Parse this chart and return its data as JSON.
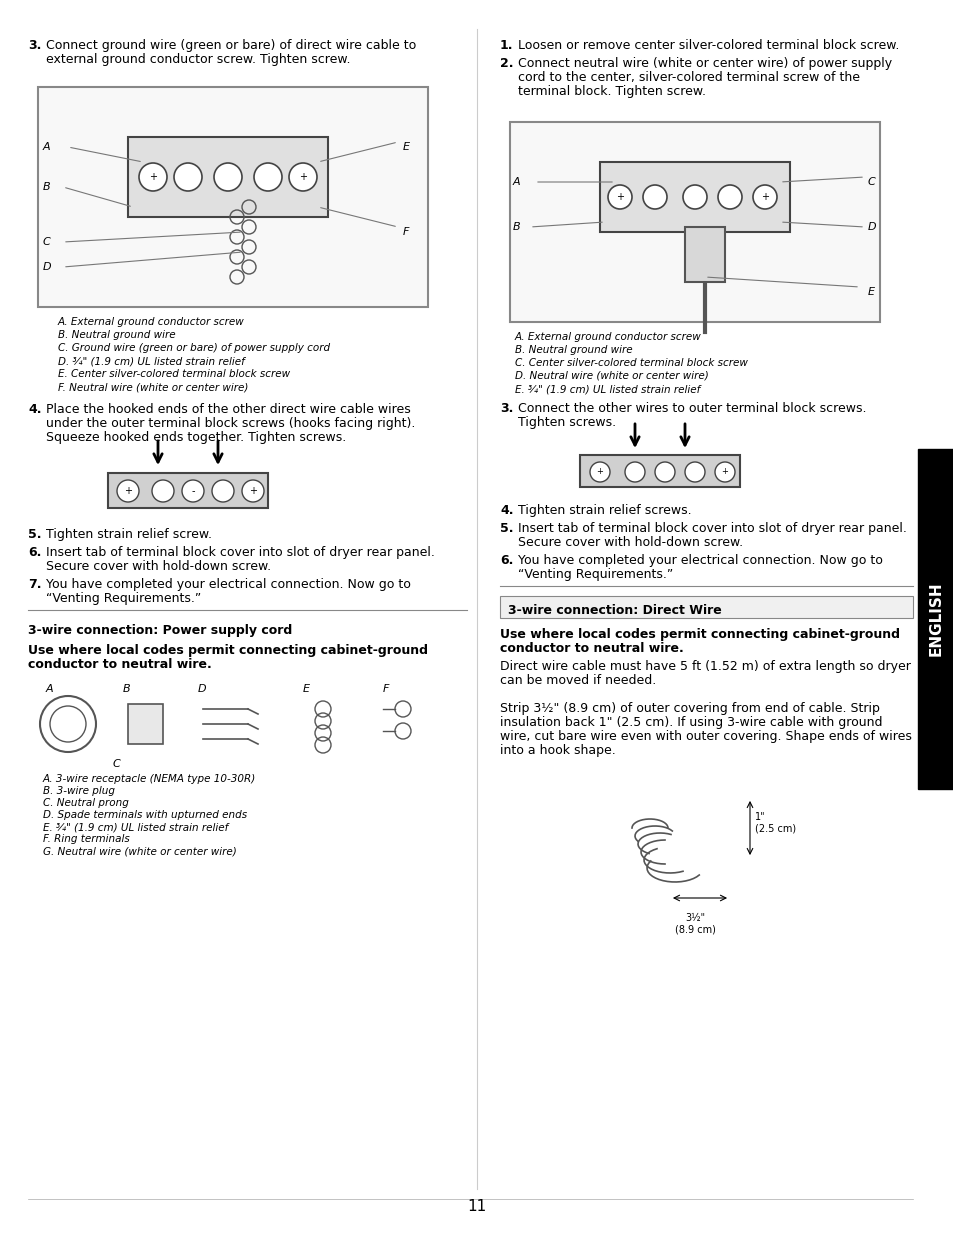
{
  "page_number": "11",
  "bg_color": "#ffffff",
  "text_color": "#000000",
  "sidebar_color": "#000000",
  "sidebar_text": "ENGLISH",
  "divider_color": "#000000",
  "left_col": {
    "step3_bold": "3.",
    "step3_text": "  Connect ground wire (green or bare) of direct wire cable to\n  external ground conductor screw. Tighten screw.",
    "legend_left": [
      "A. External ground conductor screw",
      "B. Neutral ground wire",
      "C. Ground wire (green or bare) of power supply cord",
      "D. ¾\" (1.9 cm) UL listed strain relief",
      "E. Center silver-colored terminal block screw",
      "F. Neutral wire (white or center wire)"
    ],
    "step4_bold": "4.",
    "step4_text": "  Place the hooked ends of the other direct wire cable wires\n  under the outer terminal block screws (hooks facing right).\n  Squeeze hooked ends together. Tighten screws.",
    "step5_bold": "5.",
    "step5_text": "  Tighten strain relief screw.",
    "step6_bold": "6.",
    "step6_text": "  Insert tab of terminal block cover into slot of dryer rear panel.\n  Secure cover with hold-down screw.",
    "step7_bold": "7.",
    "step7_text": "  You have completed your electrical connection. Now go to\n  “Venting Requirements.”",
    "section_title": "3-wire connection: Power supply cord",
    "use_where": "Use where local codes permit connecting cabinet-ground\nconductor to neutral wire.",
    "legend2": [
      "A. 3-wire receptacle (NEMA type 10-30R)",
      "B. 3-wire plug",
      "C. Neutral prong",
      "D. Spade terminals with upturned ends",
      "E. ¾\" (1.9 cm) UL listed strain relief",
      "F. Ring terminals",
      "G. Neutral wire (white or center wire)"
    ]
  },
  "right_col": {
    "step1_bold": "1.",
    "step1_text": "  Loosen or remove center silver-colored terminal block screw.",
    "step2_bold": "2.",
    "step2_text": "  Connect neutral wire (white or center wire) of power supply\n  cord to the center, silver-colored terminal screw of the\n  terminal block. Tighten screw.",
    "legend_right": [
      "A. External ground conductor screw",
      "B. Neutral ground wire",
      "C. Center silver-colored terminal block screw",
      "D. Neutral wire (white or center wire)",
      "E. ¾\" (1.9 cm) UL listed strain relief"
    ],
    "step3_bold": "3.",
    "step3_text": "  Connect the other wires to outer terminal block screws.\n  Tighten screws.",
    "step4_bold": "4.",
    "step4_text": "  Tighten strain relief screws.",
    "step5_bold": "5.",
    "step5_text": "  Insert tab of terminal block cover into slot of dryer rear panel.\n  Secure cover with hold-down screw.",
    "step6_bold": "6.",
    "step6_text": "  You have completed your electrical connection. Now go to\n  “Venting Requirements.”",
    "section_title2": "3-wire connection: Direct Wire",
    "use_where2": "Use where local codes permit connecting cabinet-ground\nconductor to neutral wire.",
    "direct_wire_text": "Direct wire cable must have 5 ft (1.52 m) of extra length so dryer\ncan be moved if needed.\n\nStrip 3½\" (8.9 cm) of outer covering from end of cable. Strip\ninsulation back 1\" (2.5 cm). If using 3-wire cable with ground\nwire, cut bare wire even with outer covering. Shape ends of wires\ninto a hook shape."
  }
}
